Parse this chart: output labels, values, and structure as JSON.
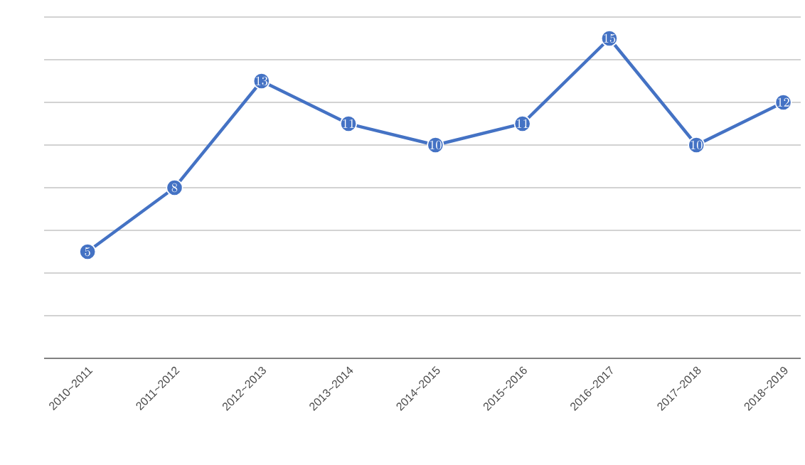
{
  "chart_data": {
    "type": "line",
    "categories": [
      "2010~2011",
      "2011~2012",
      "2012~2013",
      "2013~2014",
      "2014~2015",
      "2015~2016",
      "2016~2017",
      "2017~2018",
      "2018~2019"
    ],
    "values": [
      5,
      8,
      13,
      11,
      10,
      11,
      15,
      10,
      12
    ],
    "color": "#4472c4",
    "ylim": [
      0,
      16
    ],
    "yticks": [
      {
        "value": 0,
        "label": null
      },
      {
        "value": 2,
        "label": null
      },
      {
        "value": 4,
        "label": null
      },
      {
        "value": 6,
        "label": null
      },
      {
        "value": 8,
        "label": null
      },
      {
        "value": 10,
        "label": null
      },
      {
        "value": 12,
        "label": null
      },
      {
        "value": 14,
        "label": null
      },
      {
        "value": 16,
        "label": null
      }
    ],
    "tick_labels": "x",
    "grid": "y",
    "marker": "circle",
    "line_style": "solid",
    "data_labels": true
  }
}
